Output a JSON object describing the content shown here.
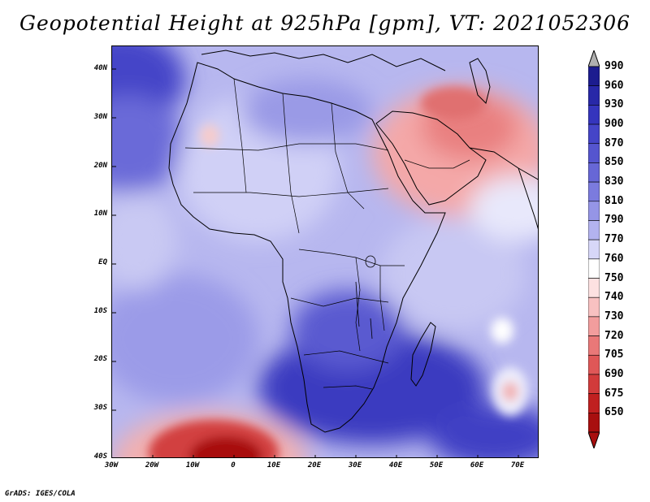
{
  "title": "Geopotential Height at 925hPa [gpm], VT: 2021052306",
  "footer": "GrADS: IGES/COLA",
  "map": {
    "variable": "Geopotential Height",
    "level": "925hPa",
    "units": "gpm",
    "valid_time": "2021052306",
    "lon_range": [
      -30,
      75
    ],
    "lat_range": [
      -40,
      45
    ],
    "lat_labels": [
      "40N",
      "30N",
      "20N",
      "10N",
      "EQ",
      "10S",
      "20S",
      "30S",
      "40S"
    ],
    "lon_labels": [
      "30W",
      "20W",
      "10W",
      "0",
      "10E",
      "20E",
      "30E",
      "40E",
      "50E",
      "60E",
      "70E"
    ]
  },
  "colorbar": {
    "levels": [
      "990",
      "960",
      "930",
      "900",
      "870",
      "850",
      "830",
      "810",
      "790",
      "770",
      "760",
      "750",
      "740",
      "730",
      "720",
      "705",
      "690",
      "675",
      "650"
    ],
    "colors": [
      "#1c1c8f",
      "#2828a8",
      "#3535bd",
      "#4545c8",
      "#5555cf",
      "#6767d6",
      "#7b7bde",
      "#9595e6",
      "#b3b3ef",
      "#d7d7f8",
      "#ffffff",
      "#fde1e1",
      "#f8c1c1",
      "#f29d9d",
      "#e97878",
      "#df5757",
      "#d23b3b",
      "#c02020",
      "#a80f0f"
    ],
    "over_color": "#b0b0b0"
  }
}
